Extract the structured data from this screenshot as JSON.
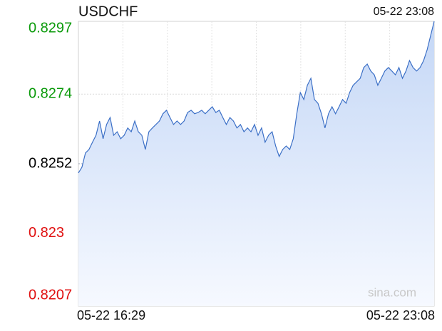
{
  "chart_data": {
    "type": "area",
    "title": "USDCHF",
    "timestamp": "05-22 23:08",
    "watermark": "sina.com",
    "x_labels": [
      "05-22 16:29",
      "05-22 23:08"
    ],
    "series": [
      {
        "name": "USDCHF",
        "color": "#3b6fc6",
        "values": [
          0.82491,
          0.82509,
          0.82554,
          0.82565,
          0.82588,
          0.8261,
          0.82655,
          0.82599,
          0.82644,
          0.82666,
          0.8261,
          0.82621,
          0.82599,
          0.8261,
          0.82633,
          0.82621,
          0.82655,
          0.82621,
          0.8261,
          0.82565,
          0.82621,
          0.82633,
          0.82644,
          0.82655,
          0.82678,
          0.82689,
          0.82666,
          0.82644,
          0.82655,
          0.82644,
          0.82655,
          0.82682,
          0.82689,
          0.82678,
          0.82682,
          0.82689,
          0.82678,
          0.82689,
          0.827,
          0.82682,
          0.82689,
          0.82666,
          0.82644,
          0.82666,
          0.82655,
          0.82633,
          0.82644,
          0.82621,
          0.82633,
          0.82621,
          0.82644,
          0.8261,
          0.82633,
          0.82588,
          0.8261,
          0.82621,
          0.82576,
          0.82543,
          0.82565,
          0.82576,
          0.82565,
          0.82599,
          0.82678,
          0.82745,
          0.82723,
          0.82768,
          0.8279,
          0.82723,
          0.82711,
          0.82678,
          0.82633,
          0.82678,
          0.827,
          0.82678,
          0.827,
          0.82723,
          0.82711,
          0.82745,
          0.82768,
          0.82779,
          0.8279,
          0.82824,
          0.82835,
          0.82813,
          0.82801,
          0.82768,
          0.8279,
          0.82813,
          0.82824,
          0.82813,
          0.82801,
          0.82824,
          0.8279,
          0.82813,
          0.82846,
          0.82824,
          0.82813,
          0.82824,
          0.82846,
          0.8288,
          0.82925,
          0.8297
        ]
      }
    ],
    "ylim": [
      0.8207,
      0.8297
    ],
    "yticks": [
      0.8297,
      0.8274,
      0.8252,
      0.823,
      0.8207
    ],
    "baseline": 0.8252,
    "up_color": "#0a9a0a",
    "down_color": "#e01010",
    "flat_color": "#000000",
    "grid": true,
    "x_grid_divisions": 8
  }
}
